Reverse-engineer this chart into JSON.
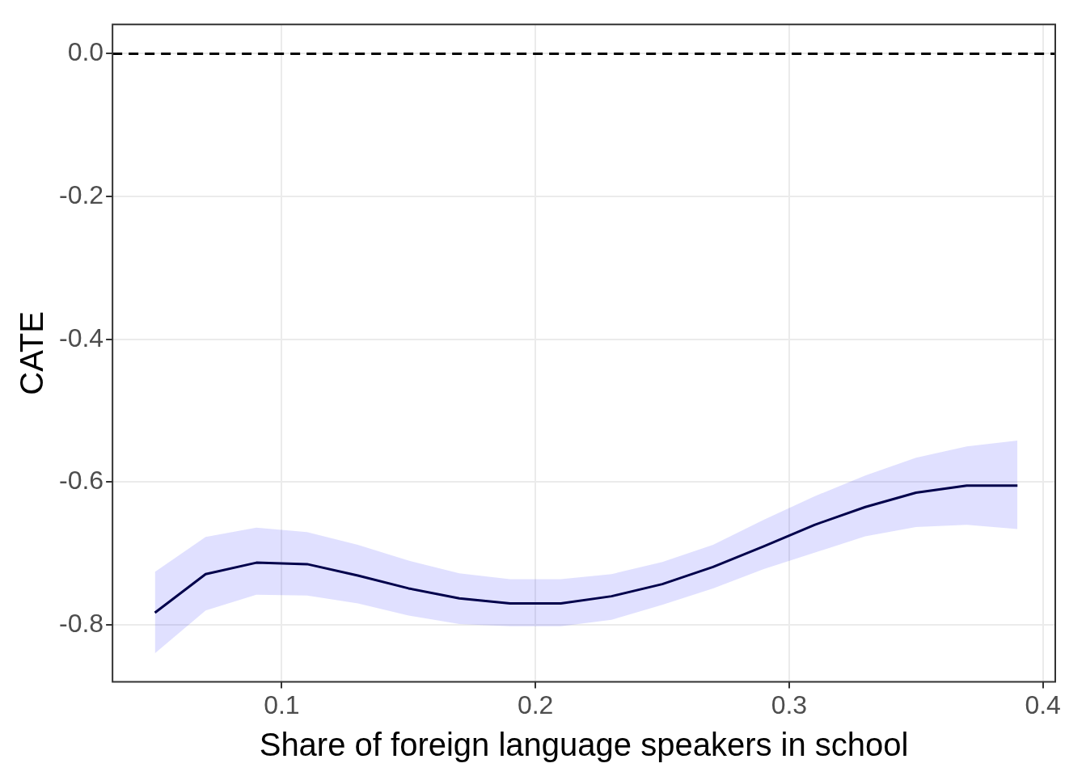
{
  "chart_data": {
    "type": "line",
    "xlabel": "Share of foreign language speakers in school",
    "ylabel": "CATE",
    "x": [
      0.05,
      0.07,
      0.09,
      0.11,
      0.13,
      0.15,
      0.17,
      0.19,
      0.21,
      0.23,
      0.25,
      0.27,
      0.29,
      0.31,
      0.33,
      0.35,
      0.37,
      0.39
    ],
    "series": [
      {
        "color": "#000033",
        "values": [
          -0.783,
          -0.729,
          -0.713,
          -0.715,
          -0.731,
          -0.749,
          -0.763,
          -0.77,
          -0.77,
          -0.76,
          -0.743,
          -0.719,
          -0.69,
          -0.66,
          -0.635,
          -0.615,
          -0.605,
          -0.605
        ],
        "lower": [
          -0.84,
          -0.78,
          -0.758,
          -0.759,
          -0.77,
          -0.787,
          -0.799,
          -0.802,
          -0.802,
          -0.793,
          -0.772,
          -0.749,
          -0.722,
          -0.699,
          -0.676,
          -0.663,
          -0.66,
          -0.666
        ],
        "upper": [
          -0.726,
          -0.677,
          -0.664,
          -0.67,
          -0.688,
          -0.71,
          -0.728,
          -0.736,
          -0.736,
          -0.729,
          -0.712,
          -0.688,
          -0.653,
          -0.62,
          -0.591,
          -0.566,
          -0.55,
          -0.542
        ]
      }
    ],
    "xlim": [
      0.0333,
      0.4049
    ],
    "ylim": [
      -0.88,
      0.041
    ],
    "xticks": [
      0.1,
      0.2,
      0.3,
      0.4
    ],
    "yticks": [
      {
        "value": 0,
        "label": "0.0"
      },
      -0.2,
      -0.4,
      -0.6,
      -0.8
    ],
    "ref_lines": [
      {
        "axis": "y",
        "value": 0,
        "color": "#000000",
        "line_style": "dashed"
      }
    ],
    "grid": true,
    "legend": false,
    "marker": "none",
    "line_style": "solid"
  }
}
